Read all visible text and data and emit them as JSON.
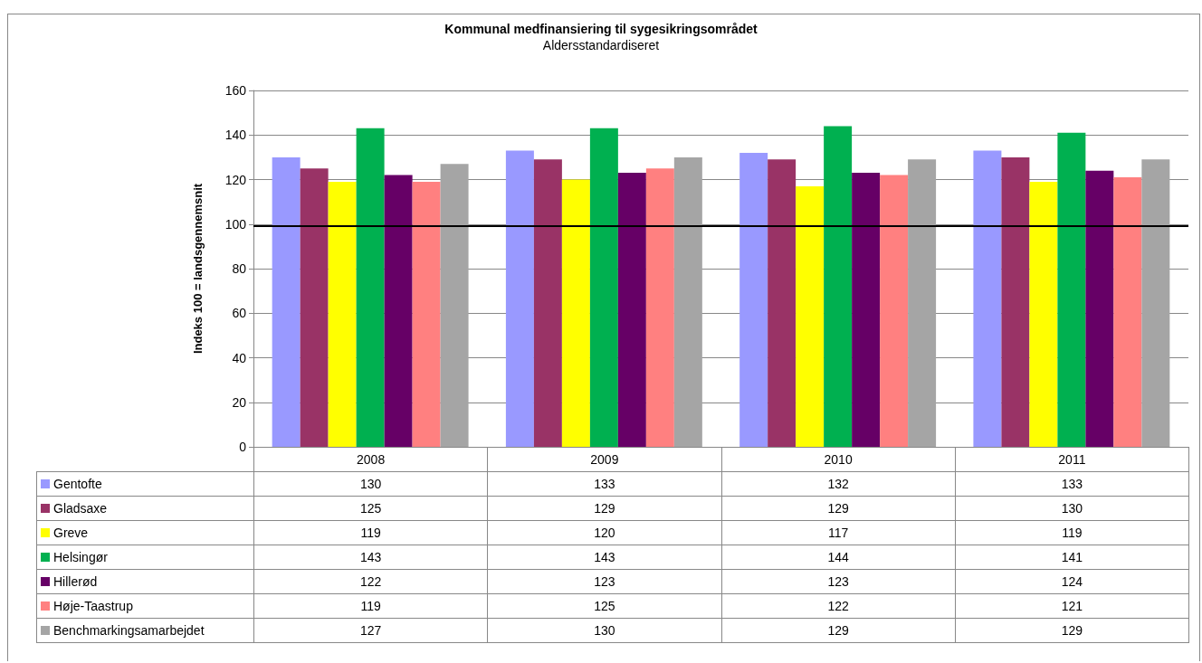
{
  "chart_data": {
    "type": "bar",
    "title": "Kommunal medfinansiering til sygesikringsområdet",
    "subtitle": "Aldersstandardiseret",
    "ylabel": "Indeks 100 = landsgennemsnit",
    "categories": [
      "2008",
      "2009",
      "2010",
      "2011"
    ],
    "series": [
      {
        "name": "Gentofte",
        "color": "#9999ff",
        "values": [
          130,
          133,
          132,
          133
        ]
      },
      {
        "name": "Gladsaxe",
        "color": "#993366",
        "values": [
          125,
          129,
          129,
          130
        ]
      },
      {
        "name": "Greve",
        "color": "#ffff00",
        "values": [
          119,
          120,
          117,
          119
        ]
      },
      {
        "name": "Helsingør",
        "color": "#00b050",
        "values": [
          143,
          143,
          144,
          141
        ]
      },
      {
        "name": "Hillerød",
        "color": "#660066",
        "values": [
          122,
          123,
          123,
          124
        ]
      },
      {
        "name": "Høje-Taastrup",
        "color": "#ff8080",
        "values": [
          119,
          125,
          122,
          121
        ]
      },
      {
        "name": "Benchmarkingsamarbejdet",
        "color": "#a5a5a5",
        "values": [
          127,
          130,
          129,
          129
        ]
      }
    ],
    "ylim": [
      0,
      160
    ],
    "yticks": [
      0,
      20,
      40,
      60,
      80,
      100,
      120,
      140,
      160
    ],
    "grid": "y",
    "ref_lines": [
      {
        "axis": "y",
        "value": 99,
        "color": "#000000"
      }
    ],
    "data_labels": true,
    "legend": "bottom left"
  }
}
